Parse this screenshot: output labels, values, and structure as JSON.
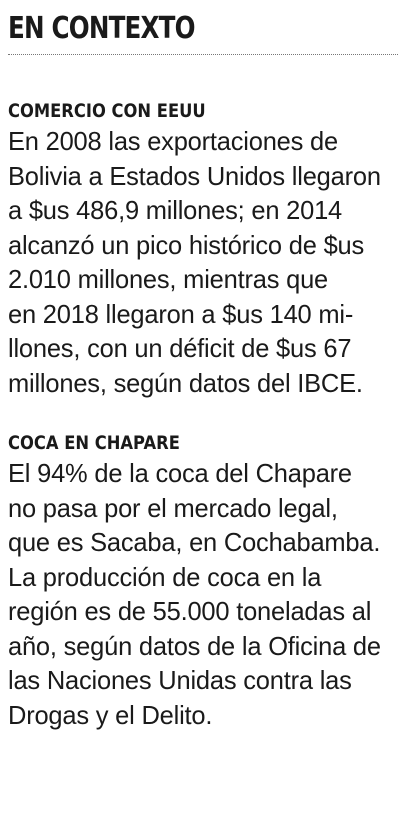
{
  "title": "EN CONTEXTO",
  "sections": [
    {
      "heading": "COMERCIO CON EEUU",
      "lines": [
        "En 2008 las exportaciones de",
        "Bolivia a Estados Unidos llegaron",
        "a $us 486,9 millones; en 2014",
        "alcanzó un pico histórico de $us",
        "2.010 millones, mientras que",
        "en 2018 llegaron a $us 140 mi-",
        "llones, con un déficit de $us 67",
        "millones, según datos del IBCE."
      ]
    },
    {
      "heading": "COCA EN CHAPARE",
      "lines": [
        "El 94% de la coca del Chapare",
        "no pasa por el mercado legal,",
        "que es Sacaba, en Cochabamba.",
        "La producción de coca en la",
        "región es de 55.000 toneladas al",
        "año, según datos de la Oficina de",
        "las Naciones Unidas contra las",
        "Drogas y el Delito."
      ]
    }
  ]
}
